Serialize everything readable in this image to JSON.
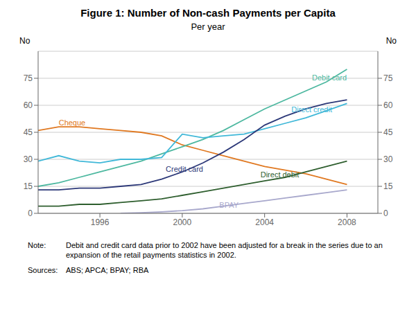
{
  "chart_data": {
    "type": "line",
    "title": "Figure 1: Number of Non-cash Payments per Capita",
    "subtitle": "Per year",
    "ylabel": "No",
    "y2label": "No",
    "x": [
      1993,
      1994,
      1995,
      1996,
      1997,
      1998,
      1999,
      2000,
      2001,
      2002,
      2003,
      2004,
      2005,
      2006,
      2007,
      2008
    ],
    "xlim": [
      1993,
      2009.5
    ],
    "xticks": [
      1996,
      2000,
      2004,
      2008
    ],
    "ylim": [
      0,
      90
    ],
    "yticks": [
      0,
      15,
      30,
      45,
      60,
      75
    ],
    "y2lim": [
      0,
      90
    ],
    "y2ticks": [
      0,
      15,
      30,
      45,
      60,
      75
    ],
    "grid": true,
    "series": [
      {
        "name": "Cheque",
        "color": "#e07820",
        "values": [
          46,
          48,
          48,
          47,
          46,
          45,
          43,
          38,
          35,
          32,
          29,
          26,
          24,
          22,
          19,
          16
        ]
      },
      {
        "name": "Debit card",
        "color": "#4db8a0",
        "values": [
          15,
          17,
          20,
          23,
          26,
          29,
          33,
          37,
          41,
          46,
          52,
          58,
          63,
          68,
          73,
          80
        ]
      },
      {
        "name": "Direct credit",
        "color": "#40b8d8",
        "values": [
          29,
          32,
          29,
          28,
          30,
          30,
          31,
          44,
          42,
          43,
          44,
          47,
          50,
          53,
          57,
          61
        ]
      },
      {
        "name": "Credit card",
        "color": "#2c3878",
        "values": [
          13,
          13,
          14,
          14,
          15,
          16,
          19,
          23,
          28,
          34,
          41,
          49,
          54,
          58,
          61,
          63
        ]
      },
      {
        "name": "Direct debit",
        "color": "#2e5e2e",
        "values": [
          4,
          4,
          5,
          5,
          6,
          7,
          8,
          10,
          12,
          14,
          16,
          18,
          20,
          23,
          26,
          29
        ]
      },
      {
        "name": "BPAY",
        "color": "#a8a8cc",
        "values": [
          null,
          null,
          null,
          null,
          0,
          0.3,
          0.8,
          1.5,
          2.5,
          4.0,
          5.5,
          7.0,
          8.5,
          10.0,
          11.5,
          13.0
        ]
      }
    ],
    "annotations": [
      {
        "label": "Note:",
        "text": "Debit and credit card data prior to 2002 have been adjusted for a break in the series due to an expansion of the retail payments statistics in 2002."
      },
      {
        "label": "Sources:",
        "text": "ABS; APCA; BPAY; RBA"
      }
    ]
  }
}
